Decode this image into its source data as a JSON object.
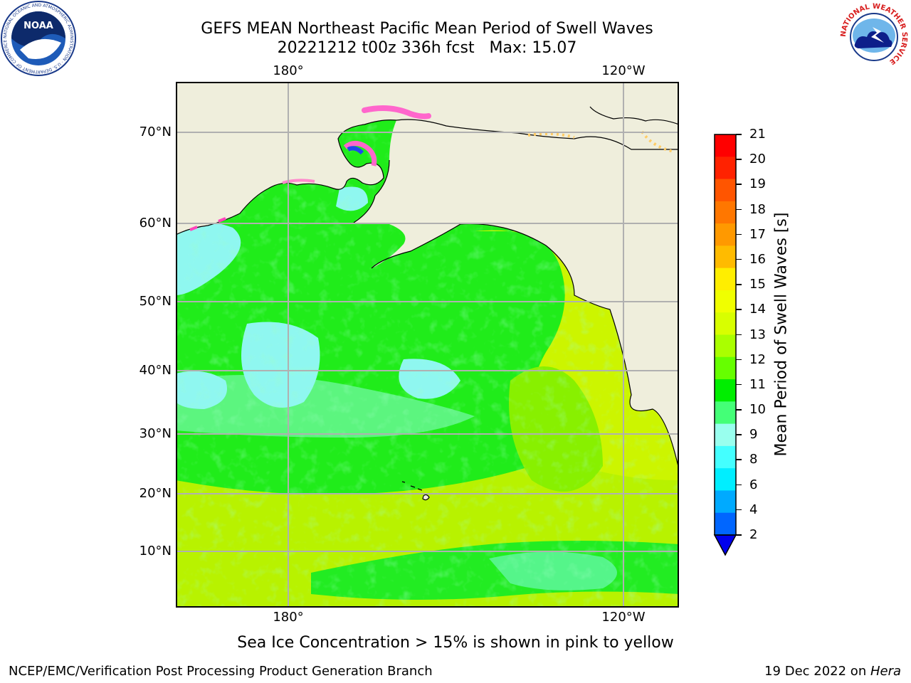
{
  "title": {
    "line1": "GEFS MEAN Northeast Pacific Mean Period of Swell Waves",
    "line2": "20221212 t00z 336h fcst   Max: 15.07"
  },
  "map": {
    "top_lon_labels": [
      "180°",
      "120°W"
    ],
    "bottom_lon_labels": [
      "180°",
      "120°W"
    ],
    "lat_labels": [
      "70°N",
      "60°N",
      "50°N",
      "40°N",
      "30°N",
      "20°N",
      "10°N"
    ],
    "grid": true,
    "land_color": "#efeedc",
    "coast_color": "#000000"
  },
  "colorbar": {
    "label": "Mean Period of Swell Waves [s]",
    "ticks": [
      "21",
      "20",
      "19",
      "18",
      "17",
      "16",
      "15",
      "14",
      "13",
      "12",
      "11",
      "10",
      "9",
      "8",
      "6",
      "4",
      "2"
    ],
    "colors_top_to_bottom": [
      "#ff0000",
      "#ff2200",
      "#ff5500",
      "#ff7700",
      "#ff9900",
      "#ffbb00",
      "#ffee00",
      "#f0ff00",
      "#d8ff00",
      "#aaff00",
      "#66ff00",
      "#00ee00",
      "#44ff77",
      "#99ffee",
      "#44ffff",
      "#00eeff",
      "#00aaff",
      "#0066ff"
    ],
    "under_color": "#0000ee"
  },
  "notes": {
    "sea_ice": "Sea Ice Concentration > 15% is shown in pink to yellow"
  },
  "footer": {
    "left": "NCEP/EMC/Verification Post Processing Product Generation Branch",
    "right_prefix": "19 Dec 2022 on ",
    "right_host": "Hera"
  },
  "logos": {
    "left_text": "NOAA",
    "left_ring_text": "NATIONAL OCEANIC AND ATMOSPHERIC ADMINISTRATION · U.S. DEPARTMENT OF COMMERCE",
    "right_ring_text": "NATIONAL WEATHER SERVICE"
  }
}
